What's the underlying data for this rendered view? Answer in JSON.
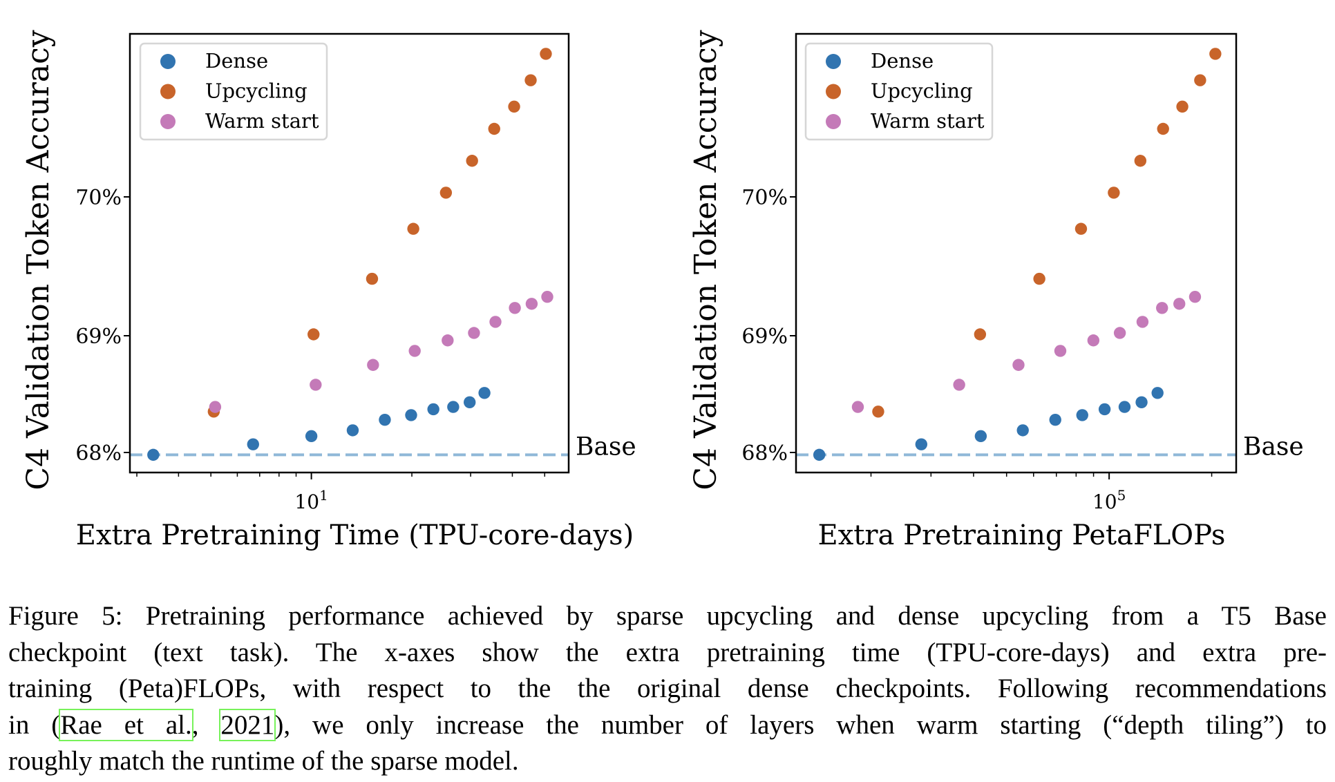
{
  "colors": {
    "dense": "#3174b0",
    "upcycling": "#c8642a",
    "warm_start": "#c47ab8",
    "base_line": "#8fb8d8"
  },
  "chart_data": [
    {
      "type": "scatter",
      "xlabel": "Extra Pretraining Time (TPU-core-days)",
      "ylabel": "C4 Validation Token Accuracy",
      "xscale": "log",
      "xlim": [
        2.86,
        59
      ],
      "ylim": [
        67.82,
        71.18
      ],
      "x_major_ticks": [
        {
          "value": 10,
          "base": "10",
          "exp": "1"
        }
      ],
      "x_minor_ticks": [
        3,
        4,
        5,
        6,
        7,
        8,
        9,
        20,
        30,
        40,
        50
      ],
      "y_ticks": [
        {
          "value": 68,
          "label": "68%"
        },
        {
          "value": 69,
          "label": "69%"
        },
        {
          "value": 70,
          "label": "70%"
        }
      ],
      "baseline": {
        "value": 67.98,
        "label": "Base"
      },
      "legend": {
        "placement": "top-left",
        "entries": [
          "Dense",
          "Upcycling",
          "Warm start"
        ]
      },
      "series": [
        {
          "name": "Dense",
          "key": "dense",
          "x": [
            3.36,
            6.69,
            10,
            13.3,
            16.6,
            19.9,
            23.2,
            26.6,
            29.8,
            33.0
          ],
          "y": [
            67.98,
            68.07,
            68.14,
            68.19,
            68.28,
            68.32,
            68.37,
            68.39,
            68.43,
            68.51
          ]
        },
        {
          "name": "Upcycling",
          "key": "upcycling",
          "x": [
            5.1,
            10.15,
            15.2,
            20.2,
            25.3,
            30.3,
            35.3,
            40.5,
            45.4,
            50.4
          ],
          "y": [
            68.35,
            69.01,
            69.41,
            69.77,
            70.03,
            70.26,
            70.49,
            70.65,
            70.84,
            71.03
          ]
        },
        {
          "name": "Warm start",
          "key": "warm_start",
          "x": [
            5.15,
            10.3,
            15.3,
            20.4,
            25.6,
            30.7,
            35.6,
            40.7,
            45.7,
            50.9
          ],
          "y": [
            68.39,
            68.58,
            68.75,
            68.87,
            68.96,
            69.02,
            69.1,
            69.2,
            69.23,
            69.28
          ]
        }
      ]
    },
    {
      "type": "scatter",
      "xlabel": "Extra Pretraining PetaFLOPs",
      "ylabel": "C4 Validation Token Accuracy",
      "xscale": "log",
      "xlim": [
        12050,
        236000
      ],
      "ylim": [
        67.82,
        71.18
      ],
      "x_major_ticks": [
        {
          "value": 100000,
          "base": "10",
          "exp": "5"
        }
      ],
      "x_minor_ticks": [
        20000,
        30000,
        40000,
        50000,
        60000,
        70000,
        80000,
        90000,
        200000
      ],
      "y_ticks": [
        {
          "value": 68,
          "label": "68%"
        },
        {
          "value": 69,
          "label": "69%"
        },
        {
          "value": 70,
          "label": "70%"
        }
      ],
      "baseline": {
        "value": 67.98,
        "label": "Base"
      },
      "legend": {
        "placement": "top-left",
        "entries": [
          "Dense",
          "Upcycling",
          "Warm start"
        ]
      },
      "series": [
        {
          "name": "Dense",
          "key": "dense",
          "x": [
            14100,
            28100,
            42000,
            55800,
            69500,
            83400,
            97000,
            111000,
            124500,
            138700
          ],
          "y": [
            67.98,
            68.07,
            68.14,
            68.19,
            68.28,
            68.32,
            68.37,
            68.39,
            68.43,
            68.51
          ]
        },
        {
          "name": "Upcycling",
          "key": "upcycling",
          "x": [
            21000,
            41800,
            62400,
            82700,
            103200,
            123500,
            144000,
            164000,
            185000,
            205000
          ],
          "y": [
            68.35,
            69.01,
            69.41,
            69.77,
            70.03,
            70.26,
            70.49,
            70.65,
            70.84,
            71.03
          ]
        },
        {
          "name": "Warm start",
          "key": "warm_start",
          "x": [
            18300,
            36300,
            54200,
            71900,
            89900,
            107500,
            125300,
            143000,
            160700,
            178700
          ],
          "y": [
            68.39,
            68.58,
            68.75,
            68.87,
            68.96,
            69.02,
            69.1,
            69.2,
            69.23,
            69.28
          ]
        }
      ]
    }
  ],
  "caption": {
    "lines": [
      "Figure 5: Pretraining performance achieved by sparse upcycling and dense upcycling from a T5 Base",
      "checkpoint (text task). The x-axes show the extra pretraining time (TPU-core-days) and extra pre-",
      "training (Peta)FLOPs, with respect to the the original dense checkpoints. Following recommendations"
    ],
    "line4_prefix": "in (",
    "cite_author": "Rae et al.",
    "cite_sep": ", ",
    "cite_year": "2021",
    "line4_suffix": "), we only increase the number of layers when warm starting (“depth tiling”) to",
    "line5": "roughly match the runtime of the sparse model."
  }
}
